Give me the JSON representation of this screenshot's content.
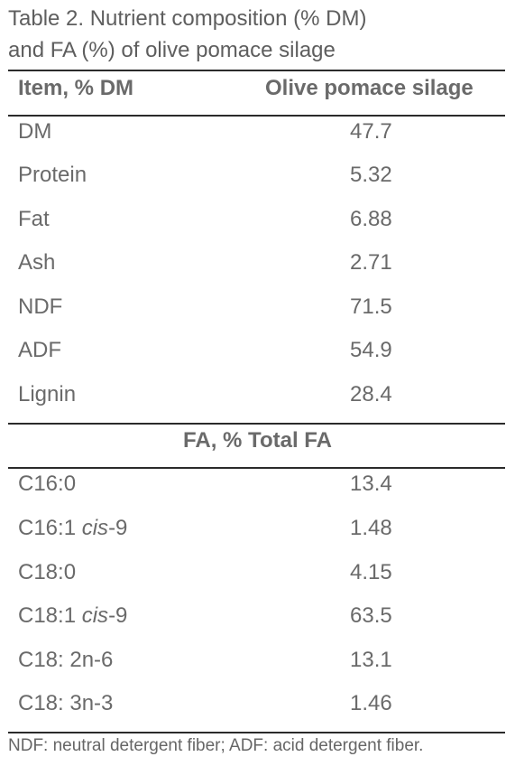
{
  "caption": {
    "line1": "Table 2. Nutrient composition (% DM)",
    "line2": "and FA (%) of olive pomace silage"
  },
  "header": {
    "item": "Item, % DM",
    "value": "Olive pomace silage"
  },
  "nutrients": [
    {
      "item": "DM",
      "value": "47.7"
    },
    {
      "item": "Protein",
      "value": "5.32"
    },
    {
      "item": "Fat",
      "value": "6.88"
    },
    {
      "item": "Ash",
      "value": "2.71"
    },
    {
      "item": "NDF",
      "value": "71.5"
    },
    {
      "item": "ADF",
      "value": "54.9"
    },
    {
      "item": "Lignin",
      "value": "28.4"
    }
  ],
  "fa_header": "FA, % Total FA",
  "fatty_acids": [
    {
      "item": "C16:0",
      "value": "13.4"
    },
    {
      "item": "C16:1 ",
      "item_italic": "cis",
      "item_suffix": "-9",
      "value": "1.48"
    },
    {
      "item": "C18:0",
      "value": "4.15"
    },
    {
      "item": "C18:1 ",
      "item_italic": "cis",
      "item_suffix": "-9",
      "value": "63.5"
    },
    {
      "item": "C18: 2n-6",
      "value": "13.1"
    },
    {
      "item": "C18: 3n-3",
      "value": "1.46"
    }
  ],
  "footnote": "NDF: neutral detergent fiber; ADF: acid detergent fiber."
}
